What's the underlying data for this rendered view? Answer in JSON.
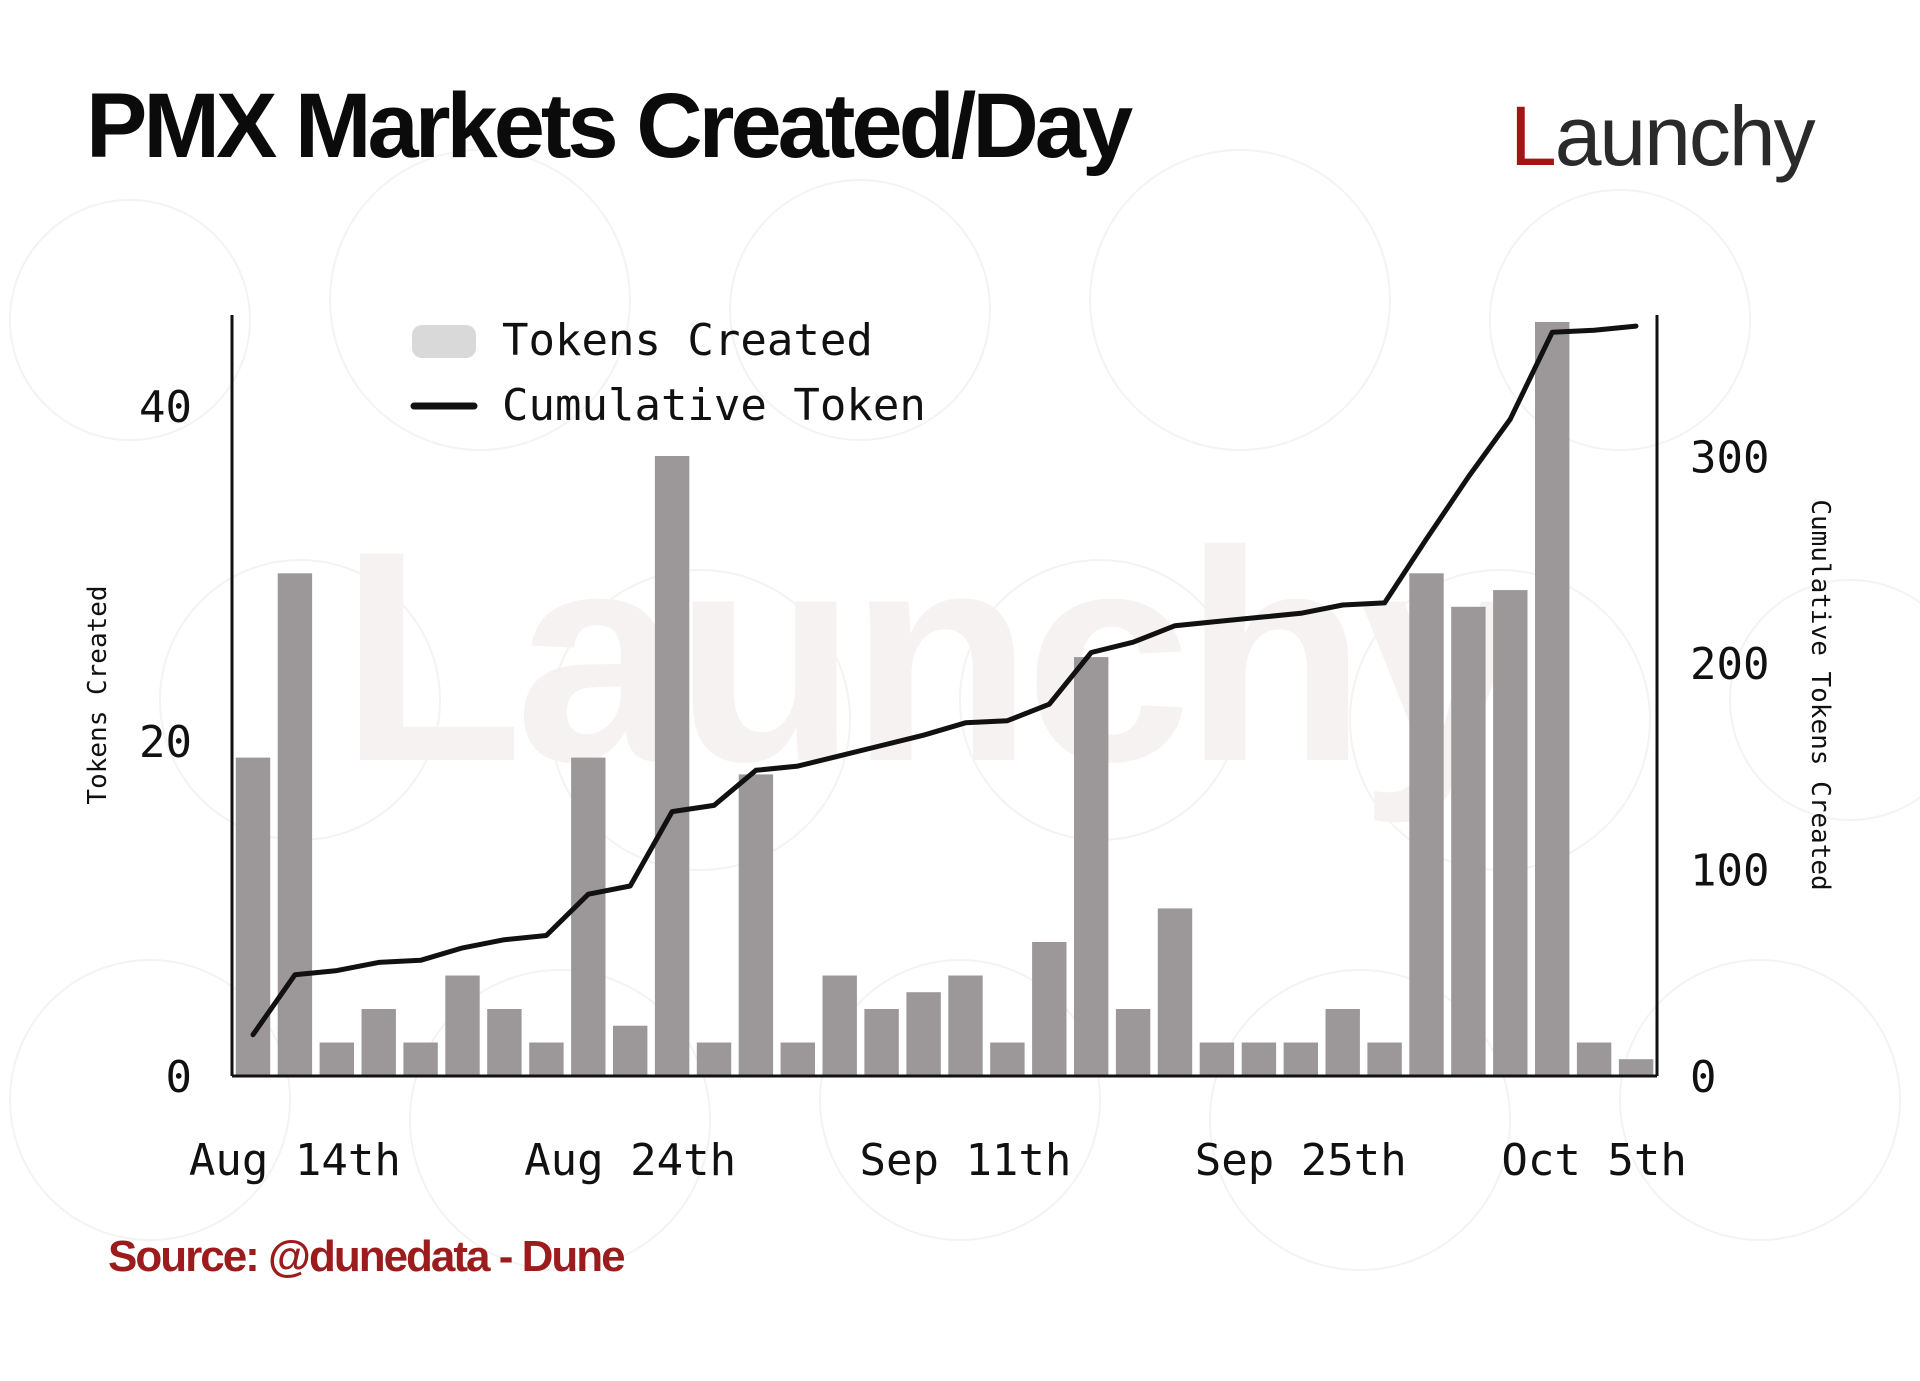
{
  "header": {
    "title": "PMX Markets Created/Day",
    "brand": "Launchy",
    "brand_initial": "L",
    "brand_rest": "aunchy"
  },
  "footer": {
    "source": "Source: @dunedata - Dune"
  },
  "colors": {
    "bar": "#9c9899",
    "line": "#111111",
    "brand": "#a31515",
    "source": "#9b1c1c"
  },
  "chart_data": {
    "type": "bar",
    "x_ticks": [
      "Aug 14th",
      "Aug 24th",
      "Sep 11th",
      "Sep 25th",
      "Oct 5th"
    ],
    "ylabel_left": "Tokens Created",
    "ylabel_right": "Cumulative Tokens Created",
    "ylim_left": [
      0,
      45
    ],
    "ylim_right": [
      0,
      365
    ],
    "yticks_left": [
      0,
      20,
      40
    ],
    "yticks_right": [
      0,
      100,
      200,
      300
    ],
    "legend": {
      "placement": "top-left",
      "bar_label": "Tokens Created",
      "line_label": "Cumulative Token"
    },
    "series": [
      {
        "name": "Tokens Created",
        "type": "bar",
        "axis": "left",
        "values": [
          19,
          30,
          2,
          4,
          2,
          6,
          4,
          2,
          19,
          3,
          37,
          2,
          18,
          2,
          6,
          4,
          5,
          6,
          2,
          8,
          25,
          4,
          10,
          2,
          2,
          2,
          4,
          2,
          30,
          28,
          29,
          45,
          2,
          1
        ]
      },
      {
        "name": "Cumulative Token",
        "type": "line",
        "axis": "right",
        "values": [
          20,
          49,
          51,
          55,
          56,
          62,
          66,
          68,
          88,
          92,
          128,
          131,
          148,
          150,
          155,
          160,
          165,
          171,
          172,
          180,
          205,
          210,
          218,
          220,
          222,
          224,
          228,
          229,
          260,
          290,
          318,
          360,
          361,
          363
        ]
      }
    ]
  }
}
